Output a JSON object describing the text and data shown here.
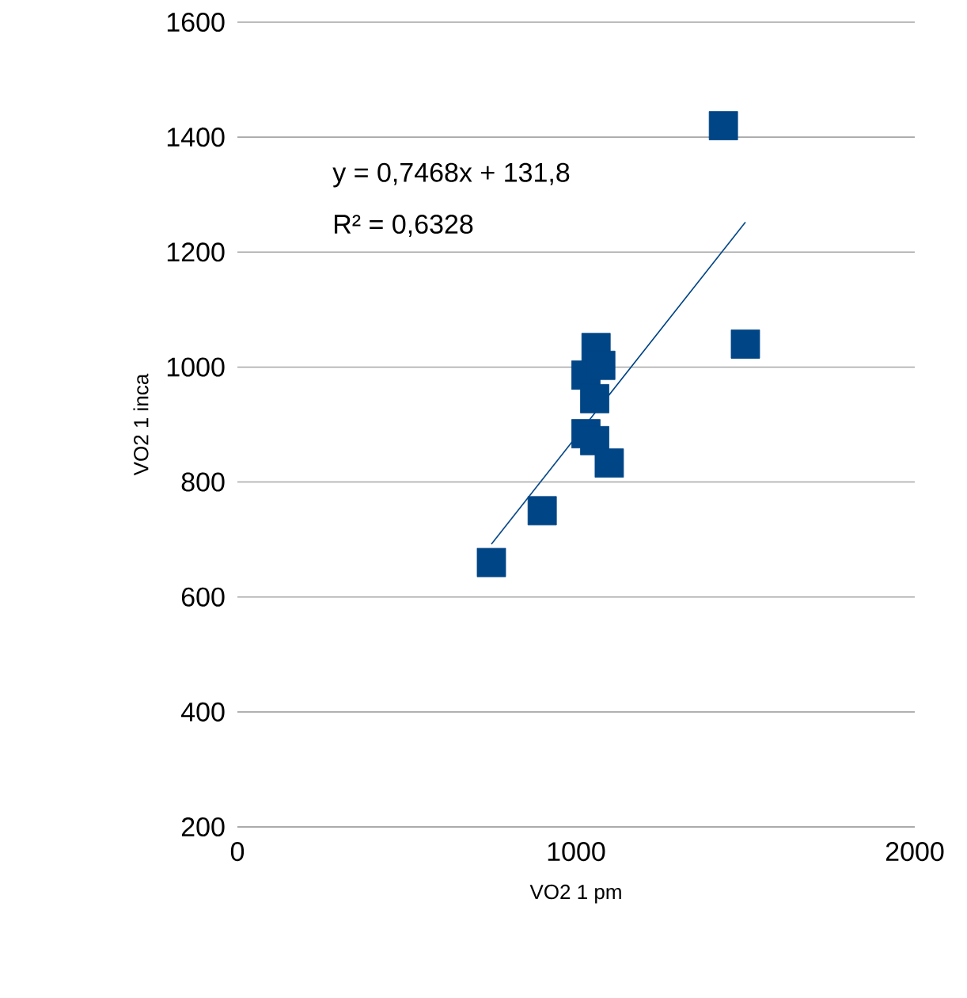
{
  "chart_data": {
    "type": "scatter",
    "xlabel": "VO2 1 pm",
    "ylabel": "VO2 1 inca",
    "xlim": [
      0,
      2000
    ],
    "xticks": [
      0,
      1000,
      2000
    ],
    "ylim": [
      200,
      1600
    ],
    "yticks": [
      200,
      400,
      600,
      800,
      1000,
      1200,
      1400,
      1600
    ],
    "grid": "y",
    "marker": "square",
    "series": [
      {
        "color": "#004586",
        "x": [
          750,
          900,
          1435,
          1500,
          1059,
          1029,
          1073,
          1055,
          1029,
          1055,
          1098
        ],
        "values": [
          660,
          750,
          1420,
          1040,
          1034,
          986,
          1003,
          945,
          884,
          872,
          833
        ]
      },
      {
        "type": "line",
        "marker": "none",
        "color": "#004586",
        "x": [
          750,
          1500
        ],
        "values": [
          692,
          1252
        ]
      }
    ],
    "annotations": [
      "y = 0,7468x + 131,8",
      "R² = 0,6328"
    ]
  }
}
